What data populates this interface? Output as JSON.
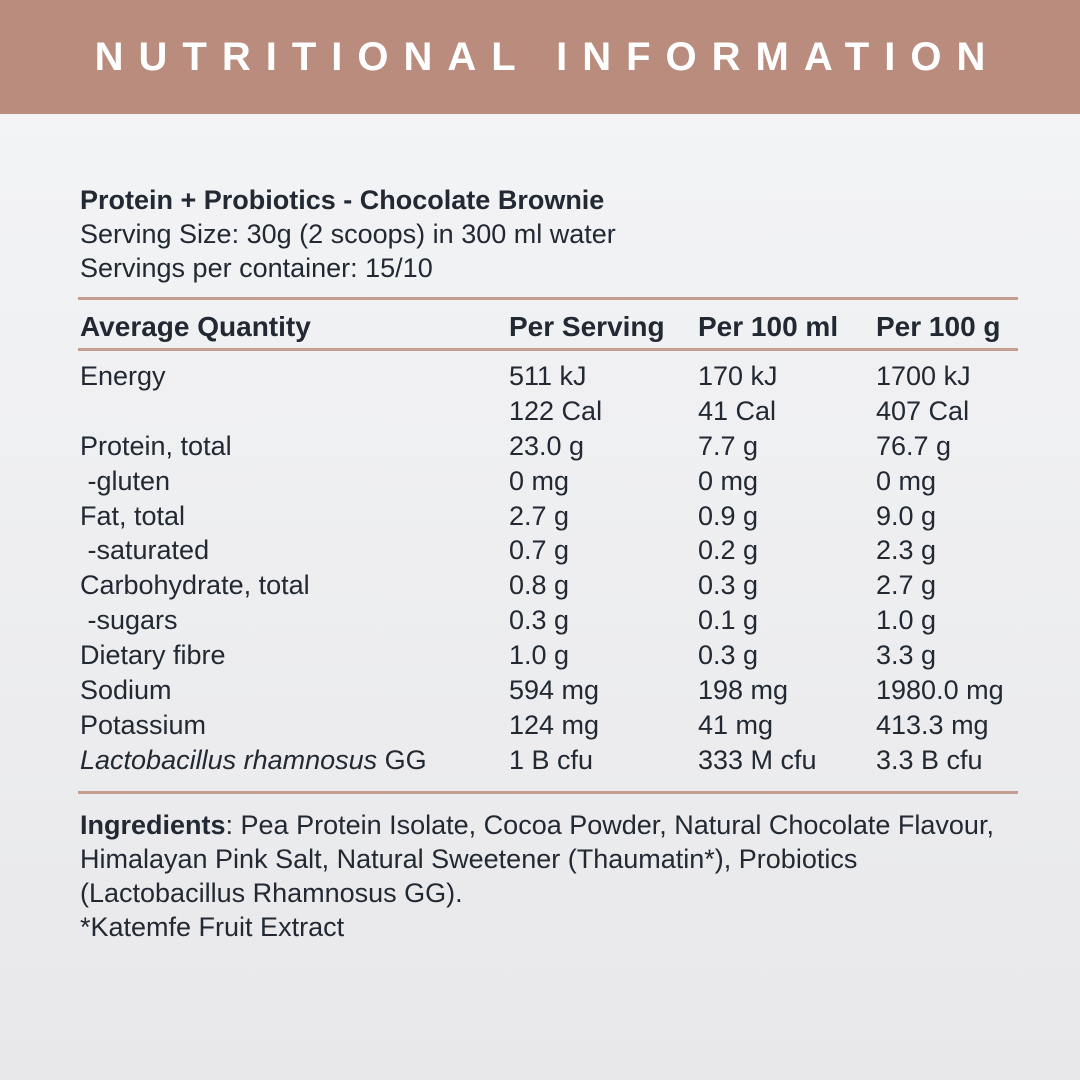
{
  "colors": {
    "banner_bg": "#b98c7d",
    "divider": "#c59e90",
    "text": "#222933",
    "background_top": "#f4f5f7",
    "background_bottom": "#e8e8ea"
  },
  "banner": {
    "title": "NUTRITIONAL INFORMATION"
  },
  "product": {
    "name": "Protein + Probiotics - Chocolate Brownie",
    "serving_size": "Serving Size: 30g (2 scoops) in 300 ml water",
    "servings_per_container": "Servings per container: 15/10"
  },
  "table": {
    "columns": {
      "label": "Average Quantity",
      "per_serving": "Per Serving",
      "per_100ml": "Per 100 ml",
      "per_100g": "Per 100 g"
    },
    "rows": [
      {
        "label": "Energy",
        "values": [
          "511 kJ",
          "170 kJ",
          "1700 kJ"
        ]
      },
      {
        "label": "",
        "values": [
          "122 Cal",
          "41 Cal",
          "407 Cal"
        ]
      },
      {
        "label": "Protein, total",
        "values": [
          "23.0 g",
          "7.7 g",
          "76.7 g"
        ]
      },
      {
        "label": " -gluten",
        "values": [
          "0 mg",
          "0 mg",
          "0 mg"
        ]
      },
      {
        "label": "Fat, total",
        "values": [
          "2.7 g",
          "0.9 g",
          "9.0 g"
        ]
      },
      {
        "label": " -saturated",
        "values": [
          "0.7 g",
          "0.2 g",
          "2.3 g"
        ]
      },
      {
        "label": "Carbohydrate, total",
        "values": [
          "0.8 g",
          "0.3 g",
          "2.7 g"
        ]
      },
      {
        "label": " -sugars",
        "values": [
          "0.3 g",
          "0.1 g",
          "1.0 g"
        ]
      },
      {
        "label": "Dietary fibre",
        "values": [
          "1.0 g",
          "0.3 g",
          "3.3 g"
        ]
      },
      {
        "label": "Sodium",
        "values": [
          "594 mg",
          "198 mg",
          "1980.0 mg"
        ]
      },
      {
        "label": "Potassium",
        "values": [
          "124 mg",
          "41 mg",
          "413.3 mg"
        ]
      },
      {
        "label_italic": "Lactobacillus rhamnosus",
        "label": " GG",
        "values": [
          "1 B cfu",
          "333 M cfu",
          "3.3 B cfu"
        ]
      }
    ]
  },
  "ingredients": {
    "lines": [
      {
        "bold": "Ingredients",
        "rest": ": Pea Protein Isolate, Cocoa Powder, Natural Chocolate Flavour,"
      },
      {
        "rest": "Himalayan Pink Salt, Natural Sweetener (Thaumatin*), Probiotics"
      },
      {
        "rest": "(Lactobacillus Rhamnosus GG)."
      },
      {
        "rest": "*Katemfe Fruit Extract"
      }
    ]
  }
}
